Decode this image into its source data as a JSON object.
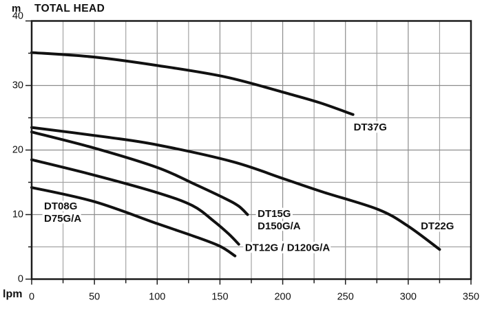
{
  "title": {
    "unit_y": "m",
    "heading": "TOTAL HEAD",
    "unit_x": "lpm"
  },
  "chart_data": {
    "type": "line",
    "title": "TOTAL HEAD",
    "xlabel": "lpm",
    "ylabel": "m",
    "xlim": [
      0,
      350
    ],
    "ylim": [
      0,
      40
    ],
    "x_grid_step": 25,
    "y_grid_step": 5,
    "x_tick_step": 50,
    "y_tick_step": 10,
    "grid": true,
    "legend_position": "inline-labels",
    "colors": {
      "curve": "#111111",
      "grid_minor": "#a3a3a3",
      "grid_major": "#8c8c8c",
      "border": "#1c1c1c",
      "text": "#111111"
    },
    "x_ticks": [
      0,
      50,
      100,
      150,
      200,
      250,
      300,
      350
    ],
    "y_ticks": [
      0,
      10,
      20,
      30,
      40
    ],
    "series": [
      {
        "name": "DT37G",
        "points": [
          [
            0,
            35.1
          ],
          [
            50,
            34.4
          ],
          [
            100,
            33.1
          ],
          [
            155,
            31.3
          ],
          [
            205,
            28.7
          ],
          [
            230,
            27.3
          ],
          [
            256,
            25.5
          ]
        ]
      },
      {
        "name": "DT22G",
        "points": [
          [
            0,
            23.5
          ],
          [
            60,
            22.0
          ],
          [
            100,
            20.8
          ],
          [
            160,
            18.2
          ],
          [
            200,
            15.6
          ],
          [
            232,
            13.5
          ],
          [
            276,
            10.8
          ],
          [
            300,
            8.2
          ],
          [
            325,
            4.6
          ]
        ]
      },
      {
        "name": "DT15G / D150G/A",
        "points": [
          [
            0,
            22.8
          ],
          [
            50,
            20.3
          ],
          [
            100,
            17.3
          ],
          [
            130,
            14.7
          ],
          [
            155,
            12.4
          ],
          [
            165,
            11.3
          ],
          [
            172,
            10.0
          ]
        ]
      },
      {
        "name": "DT12G / D120G/A",
        "points": [
          [
            0,
            18.5
          ],
          [
            50,
            16.1
          ],
          [
            100,
            13.4
          ],
          [
            128,
            11.4
          ],
          [
            145,
            9.0
          ],
          [
            157,
            7.0
          ],
          [
            165,
            5.4
          ]
        ]
      },
      {
        "name": "DT08G / D75G/A",
        "points": [
          [
            0,
            14.2
          ],
          [
            50,
            12.0
          ],
          [
            100,
            8.6
          ],
          [
            130,
            6.6
          ],
          [
            150,
            5.1
          ],
          [
            162,
            3.6
          ]
        ]
      }
    ],
    "labels": [
      {
        "id": "dt37g",
        "lines": [
          "DT37G"
        ],
        "lpm": 256.5,
        "m": 23.5
      },
      {
        "id": "dt22g",
        "lines": [
          "DT22G"
        ],
        "lpm": 310.0,
        "m": 8.2
      },
      {
        "id": "dt15g",
        "lines": [
          "DT15G",
          "D150G/A"
        ],
        "lpm": 180.0,
        "m": 10.1
      },
      {
        "id": "dt12g",
        "lines": [
          "DT12G / D120G/A"
        ],
        "lpm": 170.0,
        "m": 4.85
      },
      {
        "id": "dt08g",
        "lines": [
          "DT08G",
          "D75G/A"
        ],
        "lpm": 9.9,
        "m": 11.3
      }
    ]
  }
}
